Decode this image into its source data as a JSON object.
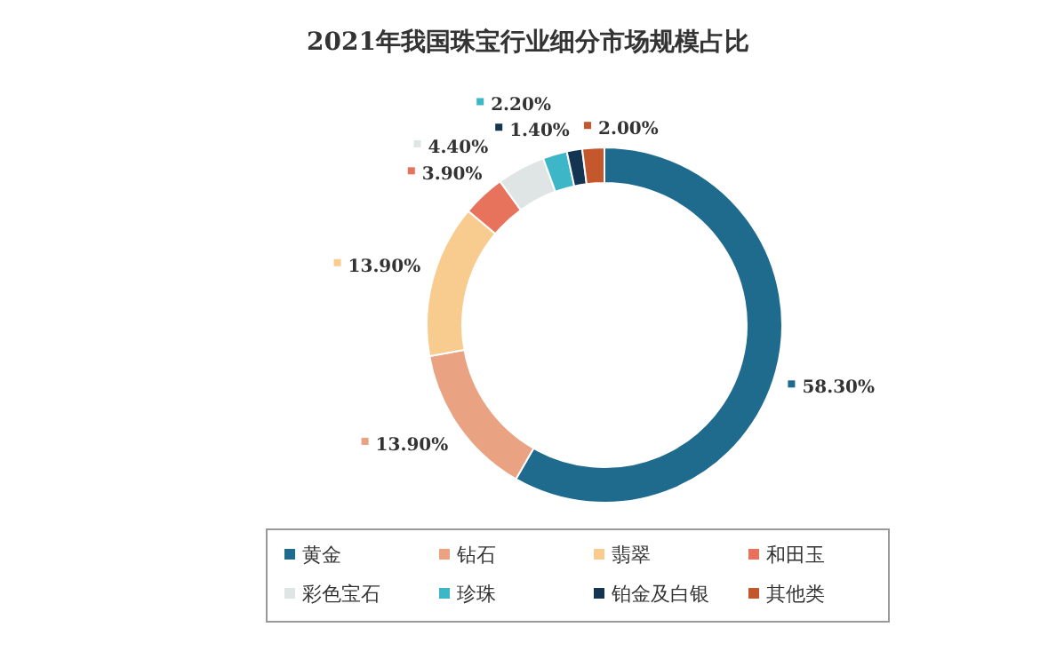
{
  "chart_data": {
    "type": "donut",
    "title": "2021年我国珠宝行业细分市场规模占比",
    "categories": [
      "黄金",
      "钻石",
      "翡翠",
      "和田玉",
      "彩色宝石",
      "珍珠",
      "铂金及白银",
      "其他类"
    ],
    "values": [
      58.3,
      13.9,
      13.9,
      3.9,
      4.4,
      2.2,
      1.4,
      2.0
    ],
    "value_labels": [
      "58.30%",
      "13.90%",
      "13.90%",
      "3.90%",
      "4.40%",
      "2.20%",
      "1.40%",
      "2.00%"
    ],
    "colors": [
      "#1f6b8e",
      "#e9a282",
      "#f8cb8e",
      "#e8735c",
      "#dfe4e4",
      "#3db6c8",
      "#143552",
      "#c4572c"
    ],
    "legend": "bottom"
  }
}
